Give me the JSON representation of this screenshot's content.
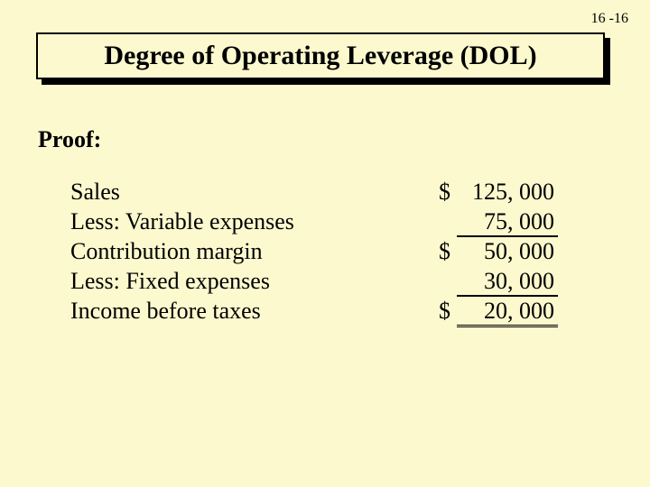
{
  "page_number": "16 -16",
  "title": "Degree of Operating Leverage (DOL)",
  "proof_label": "Proof:",
  "rows": [
    {
      "label": "Sales",
      "prefix": "$",
      "value": "125, 000",
      "underline": false,
      "double": false
    },
    {
      "label": "Less: Variable expenses",
      "prefix": "",
      "value": "75, 000",
      "underline": true,
      "double": false
    },
    {
      "label": "Contribution margin",
      "prefix": "$",
      "value": "50, 000",
      "underline": false,
      "double": false
    },
    {
      "label": "Less: Fixed expenses",
      "prefix": "",
      "value": "30, 000",
      "underline": true,
      "double": false
    },
    {
      "label": "Income before taxes",
      "prefix": "$",
      "value": "20, 000",
      "underline": false,
      "double": true
    }
  ],
  "colors": {
    "background": "#fcf9ce",
    "text": "#000000",
    "border": "#000000"
  },
  "typography": {
    "title_fontsize_pt": 30,
    "body_fontsize_pt": 26,
    "font_family": "Times New Roman"
  }
}
